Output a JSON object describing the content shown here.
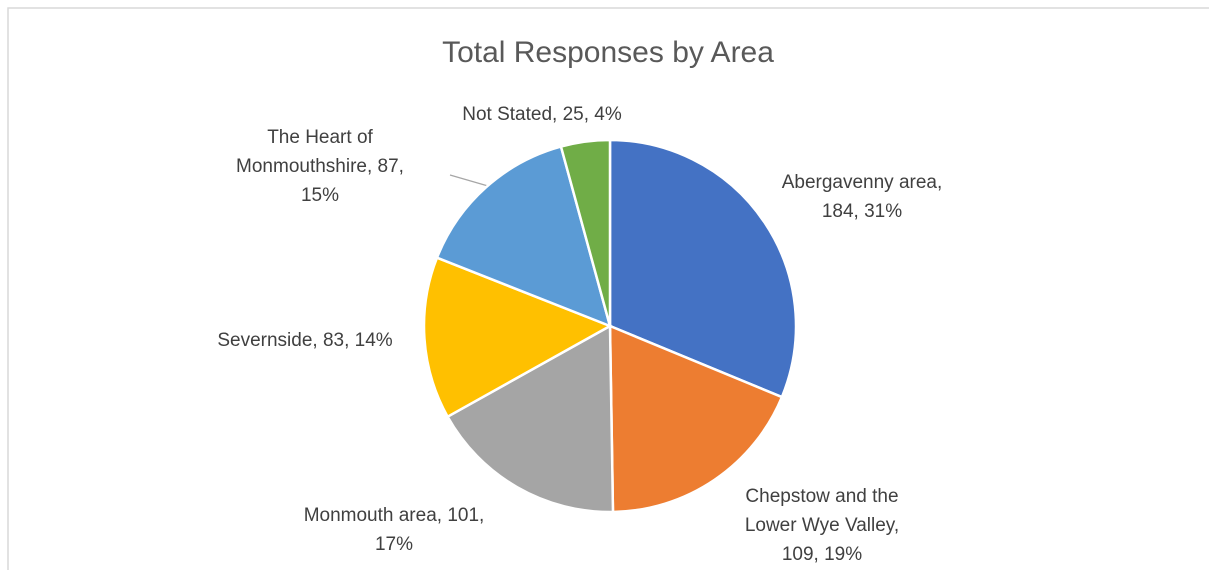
{
  "chart_data": {
    "type": "pie",
    "title": "Total Responses by Area",
    "values": [
      184,
      109,
      101,
      83,
      87,
      25
    ],
    "value_labels": [
      [
        "Abergavenny area,",
        "184, 31%"
      ],
      [
        "Chepstow and the",
        "Lower Wye Valley,",
        "109, 19%"
      ],
      [
        "Monmouth area, 101,",
        "17%"
      ],
      [
        "Severnside, 83, 14%"
      ],
      [
        "The Heart of",
        "Monmouthshire, 87,",
        "15%"
      ],
      [
        "Not Stated, 25, 4%"
      ]
    ],
    "colors": [
      "#4472c4",
      "#ed7d31",
      "#a5a5a5",
      "#ffc000",
      "#5b9bd5",
      "#70ad47"
    ]
  }
}
